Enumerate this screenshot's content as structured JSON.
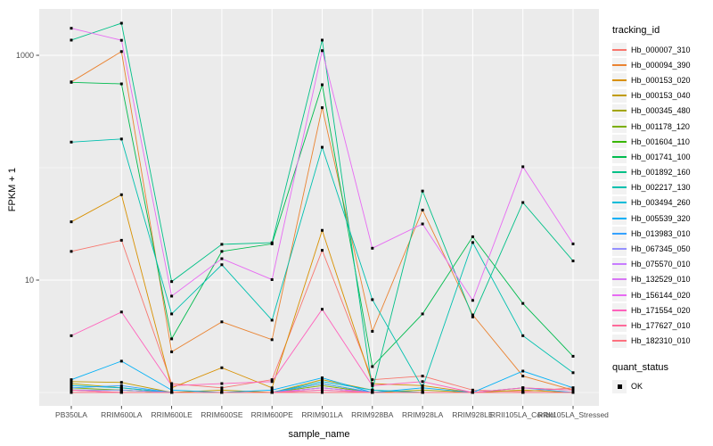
{
  "figure": {
    "panel_bg": "#EBEBEB",
    "grid_color": "#FFFFFF",
    "axis_text_color": "#4D4D4D",
    "tick_color": "#333333",
    "point_color": "#000000"
  },
  "chart_data": {
    "type": "line",
    "title": "",
    "xlabel": "sample_name",
    "ylabel": "FPKM + 1",
    "y_scale": "log10",
    "grid": true,
    "legend_position": "right",
    "legend_title": "tracking_id",
    "ylim": [
      0.9,
      2600
    ],
    "y_axis_ticks": [
      {
        "label": "1000",
        "value": 1000
      },
      {
        "label": "10",
        "value": 10
      }
    ],
    "y_minor_gridlines": [
      100,
      1
    ],
    "categories": [
      "PB350LA",
      "RRIM600LA",
      "RRIM600LE",
      "RRIM600SE",
      "RRIM600PE",
      "RRIM901LA",
      "RRIM928BA",
      "RRIM928LA",
      "RRIM928LE",
      "RRII105LA_Control",
      "RRII105LA_Stressed"
    ],
    "series": [
      {
        "name": "Hb_000007_310",
        "color": "#F8766D",
        "values": [
          18,
          22.6,
          1.2,
          1.1,
          1.3,
          18.4,
          1.3,
          1.4,
          1.05,
          1.02,
          1.1
        ]
      },
      {
        "name": "Hb_000094_390",
        "color": "#EA8331",
        "values": [
          580,
          1080,
          2.3,
          4.25,
          2.95,
          342,
          3.5,
          42,
          4.9,
          1.4,
          1.05
        ]
      },
      {
        "name": "Hb_000153_020",
        "color": "#D89000",
        "values": [
          33,
          57.5,
          1.1,
          1.66,
          1.1,
          27.7,
          1.2,
          1.15,
          1.0,
          1.1,
          1.05
        ]
      },
      {
        "name": "Hb_000153_040",
        "color": "#C09B00",
        "values": [
          1.25,
          1.23,
          1.0,
          1.05,
          1.0,
          1.3,
          1.05,
          1.0,
          1.0,
          1.05,
          1.0
        ]
      },
      {
        "name": "Hb_000345_480",
        "color": "#A3A500",
        "values": [
          1.2,
          1.1,
          1.0,
          1.0,
          1.0,
          1.2,
          1.0,
          1.05,
          1.0,
          1.0,
          1.0
        ]
      },
      {
        "name": "Hb_001178_120",
        "color": "#7CAE00",
        "values": [
          1.1,
          1.05,
          1.0,
          1.0,
          1.0,
          1.15,
          1.0,
          1.0,
          1.0,
          1.0,
          1.0
        ]
      },
      {
        "name": "Hb_001604_110",
        "color": "#39B600",
        "values": [
          1.05,
          1.05,
          1.0,
          1.0,
          1.0,
          1.1,
          1.0,
          1.0,
          1.0,
          1.0,
          1.0
        ]
      },
      {
        "name": "Hb_001741_100",
        "color": "#00BB4E",
        "values": [
          575,
          557,
          3.0,
          18,
          21,
          547,
          1.7,
          5.0,
          24.3,
          6.2,
          2.1
        ]
      },
      {
        "name": "Hb_001892_160",
        "color": "#00C087",
        "values": [
          1365,
          1930,
          9.7,
          20.8,
          21.5,
          1365,
          1.05,
          62,
          4.7,
          49,
          14.8
        ]
      },
      {
        "name": "Hb_002217_130",
        "color": "#00C0AF",
        "values": [
          169,
          180,
          5.0,
          13.7,
          4.4,
          152,
          6.7,
          1.1,
          21.6,
          3.2,
          1.5
        ]
      },
      {
        "name": "Hb_003494_260",
        "color": "#00BCD8",
        "values": [
          1.15,
          1.1,
          1.0,
          1.0,
          1.0,
          1.25,
          1.05,
          1.0,
          1.0,
          1.0,
          1.0
        ]
      },
      {
        "name": "Hb_005539_320",
        "color": "#00B0F6",
        "values": [
          1.3,
          1.9,
          1.05,
          1.0,
          1.05,
          1.35,
          1.0,
          1.1,
          1.0,
          1.55,
          1.1
        ]
      },
      {
        "name": "Hb_013983_010",
        "color": "#35A2FF",
        "values": [
          1.1,
          1.15,
          1.0,
          1.0,
          1.0,
          1.2,
          1.0,
          1.0,
          1.0,
          1.1,
          1.0
        ]
      },
      {
        "name": "Hb_067345_050",
        "color": "#9590FF",
        "values": [
          1.05,
          1.05,
          1.0,
          1.0,
          1.0,
          1.1,
          1.0,
          1.0,
          1.0,
          1.0,
          1.0
        ]
      },
      {
        "name": "Hb_075570_010",
        "color": "#C77CFF",
        "values": [
          1.05,
          1.0,
          1.0,
          1.0,
          1.0,
          1.05,
          1.0,
          1.0,
          1.0,
          1.0,
          1.0
        ]
      },
      {
        "name": "Hb_132529_010",
        "color": "#D776F5",
        "values": [
          1.05,
          1.0,
          1.0,
          1.0,
          1.0,
          1.1,
          1.0,
          1.0,
          1.0,
          1.0,
          1.0
        ]
      },
      {
        "name": "Hb_156144_020",
        "color": "#E76BF3",
        "values": [
          1740,
          1360,
          7.2,
          15.5,
          10.1,
          1100,
          19.2,
          31.6,
          6.6,
          102,
          21
        ]
      },
      {
        "name": "Hb_171554_020",
        "color": "#FF62BC",
        "values": [
          3.2,
          5.2,
          1.15,
          1.2,
          1.25,
          5.5,
          1.15,
          1.25,
          1.0,
          1.1,
          1.05
        ]
      },
      {
        "name": "Hb_177627_010",
        "color": "#FF6A9A",
        "values": [
          1.05,
          1.0,
          1.0,
          1.0,
          1.0,
          1.05,
          1.0,
          1.0,
          1.0,
          1.0,
          1.0
        ]
      },
      {
        "name": "Hb_182310_010",
        "color": "#FC717F",
        "values": [
          1.0,
          1.0,
          1.0,
          1.0,
          1.0,
          1.0,
          1.0,
          1.0,
          1.0,
          1.0,
          1.0
        ]
      }
    ],
    "quant_legend": {
      "title": "quant_status",
      "items": [
        {
          "label": "OK",
          "marker": "black-square-icon"
        }
      ]
    }
  }
}
